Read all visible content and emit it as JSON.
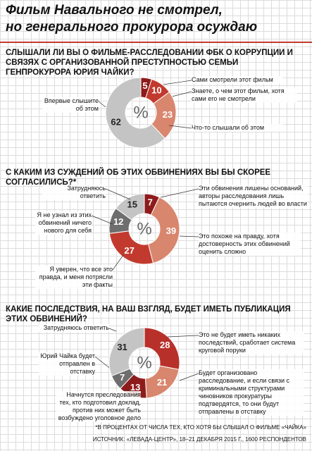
{
  "headline": [
    "Фильм Навального не смотрел,",
    "но генерального прокурора осуждаю"
  ],
  "chart_data": [
    {
      "type": "donut",
      "title": "СЛЫШАЛИ ЛИ ВЫ О ФИЛЬМЕ-РАССЛЕДОВАНИИ ФБК О КОРРУПЦИИ И СВЯЗЯХ С ОРГАНИЗОВАННОЙ ПРЕСТУПНОСТЬЮ СЕМЬИ ГЕНПРОКУРОРА ЮРИЯ ЧАЙКИ?",
      "center_label": "%",
      "categories": [
        "Сами смотрели этот фильм",
        "Знаете, о чем этот фильм, хотя сами его не смотрели",
        "Что-то слышали об этом",
        "Впервые слышите об этом"
      ],
      "values": [
        5,
        10,
        23,
        62
      ],
      "colors": [
        "#8e1b1b",
        "#c23a2e",
        "#d9866e",
        "#c4c4c4"
      ]
    },
    {
      "type": "donut",
      "title": "С КАКИМ ИЗ СУЖДЕНИЙ ОБ ЭТИХ ОБВИНЕНИЯХ ВЫ БЫ СКОРЕЕ СОГЛАСИЛИСЬ?*",
      "center_label": "%",
      "categories": [
        "Эти обвинения лишены оснований, авторы расследования лишь пытаются очернить людей во власти",
        "Это похоже на правду, хотя достоверность этих обвинений оценить сложно",
        "Я уверен, что все это правда, и меня потрясли эти факты",
        "Я не узнал из этих обвинений ничего нового для себя",
        "Затрудняюсь ответить"
      ],
      "values": [
        7,
        39,
        27,
        12,
        15
      ],
      "colors": [
        "#8e1b1b",
        "#d9866e",
        "#c23a2e",
        "#6e6e6e",
        "#c4c4c4"
      ]
    },
    {
      "type": "donut",
      "title": "КАКИЕ ПОСЛЕДСТВИЯ, НА ВАШ ВЗГЛЯД, БУДЕТ ИМЕТЬ ПУБЛИКАЦИЯ ЭТИХ ОБВИНЕНИЙ?",
      "center_label": "%",
      "categories": [
        "Это не будет иметь никаких последствий, сработает система круговой поруки",
        "Будет организовано расследование, и если связи с криминальными структурами чиновников прокуратуры подтвердятся, то они будут отправлены в отставку",
        "Начнутся преследования тех, кто подготовил доклад, против них может быть возбуждено уголовное дело",
        "Юрий Чайка будет отправлен в отставку",
        "Затрудняюсь ответить"
      ],
      "values": [
        28,
        21,
        13,
        7,
        31
      ],
      "colors": [
        "#b8302a",
        "#d9866e",
        "#8e1b1b",
        "#6e6e6e",
        "#c4c4c4"
      ]
    }
  ],
  "footnote": "*В ПРОЦЕНТАХ ОТ ЧИСЛА ТЕХ, КТО ХОТЯ БЫ СЛЫШАЛ О ФИЛЬМЕ «ЧАЙКА»",
  "source": "ИСТОЧНИК: «ЛЕВАДА-ЦЕНТР», 18–21 ДЕКАБРЯ 2015 Г., 1600 РЕСПОНДЕНТОВ"
}
